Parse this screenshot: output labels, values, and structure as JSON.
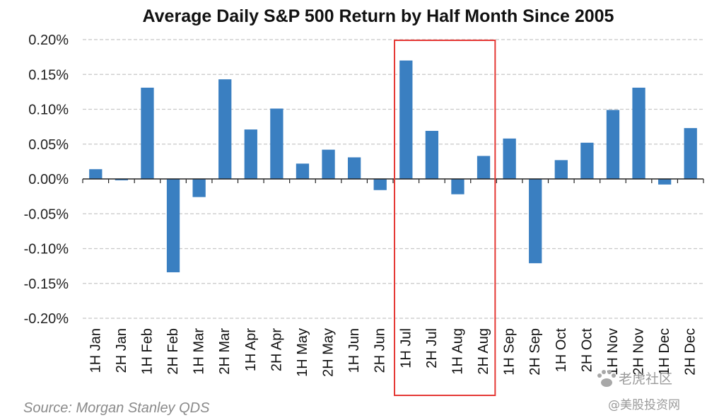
{
  "chart_data": {
    "type": "bar",
    "title": "Average Daily S&P 500 Return by Half Month Since 2005",
    "xlabel": "",
    "ylabel": "",
    "categories": [
      "1H Jan",
      "2H Jan",
      "1H Feb",
      "2H Feb",
      "1H Mar",
      "2H Mar",
      "1H Apr",
      "2H Apr",
      "1H May",
      "2H May",
      "1H Jun",
      "2H Jun",
      "1H Jul",
      "2H Jul",
      "1H Aug",
      "2H Aug",
      "1H Sep",
      "2H Sep",
      "1H Oct",
      "2H Oct",
      "1H Nov",
      "2H Nov",
      "1H Dec",
      "2H Dec"
    ],
    "values": [
      0.014,
      -0.002,
      0.131,
      -0.134,
      -0.026,
      0.143,
      0.071,
      0.101,
      0.022,
      0.042,
      0.031,
      -0.016,
      0.17,
      0.069,
      -0.022,
      0.033,
      0.058,
      -0.121,
      0.027,
      0.052,
      0.099,
      0.131,
      -0.008,
      0.073
    ],
    "value_unit": "%",
    "ylim": [
      -0.2,
      0.2
    ],
    "yticks": [
      0.2,
      0.15,
      0.1,
      0.05,
      0.0,
      -0.05,
      -0.1,
      -0.15,
      -0.2
    ],
    "ytick_labels": [
      "0.20%",
      "0.15%",
      "0.10%",
      "0.05%",
      "0.00%",
      "-0.05%",
      "-0.10%",
      "-0.15%",
      "-0.20%"
    ],
    "grid": true,
    "legend": "none",
    "bar_color": "#3a7fc1",
    "highlight": {
      "from": "1H Jul",
      "to": "2H Aug",
      "color": "#e53935"
    }
  },
  "source": "Source: Morgan Stanley QDS",
  "watermark": {
    "line1": "老虎社区",
    "line2": "@美股投资网"
  }
}
